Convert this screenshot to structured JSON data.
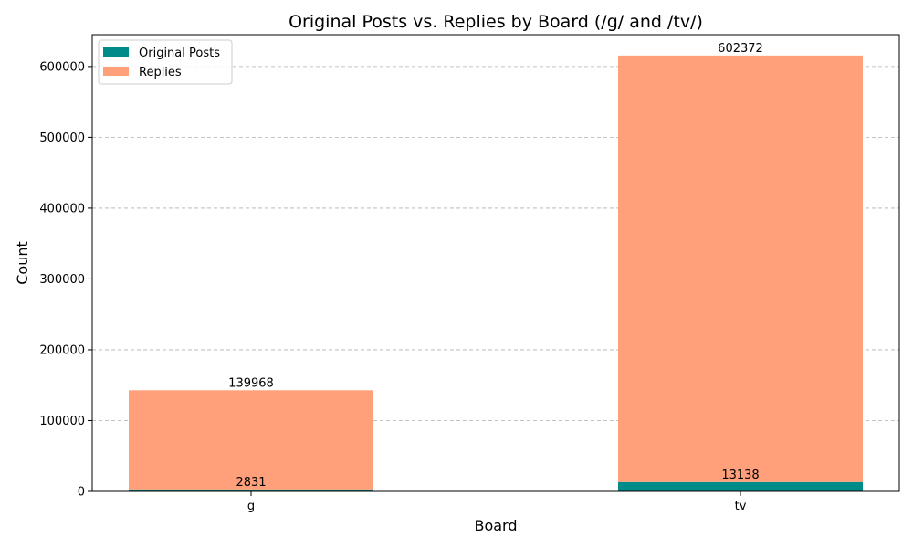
{
  "chart_data": {
    "type": "bar",
    "stacked": true,
    "title": "Original Posts vs. Replies by Board (/g/ and /tv/)",
    "xlabel": "Board",
    "ylabel": "Count",
    "categories": [
      "g",
      "tv"
    ],
    "series": [
      {
        "name": "Original Posts",
        "values": [
          2831,
          13138
        ],
        "color": "#008b8b"
      },
      {
        "name": "Replies",
        "values": [
          139968,
          602372
        ],
        "color": "#ffa07a"
      }
    ],
    "ylim": [
      0,
      645000
    ],
    "yticks": [
      0,
      100000,
      200000,
      300000,
      400000,
      500000,
      600000
    ],
    "grid": "y-dashed",
    "legend_position": "top-left"
  }
}
